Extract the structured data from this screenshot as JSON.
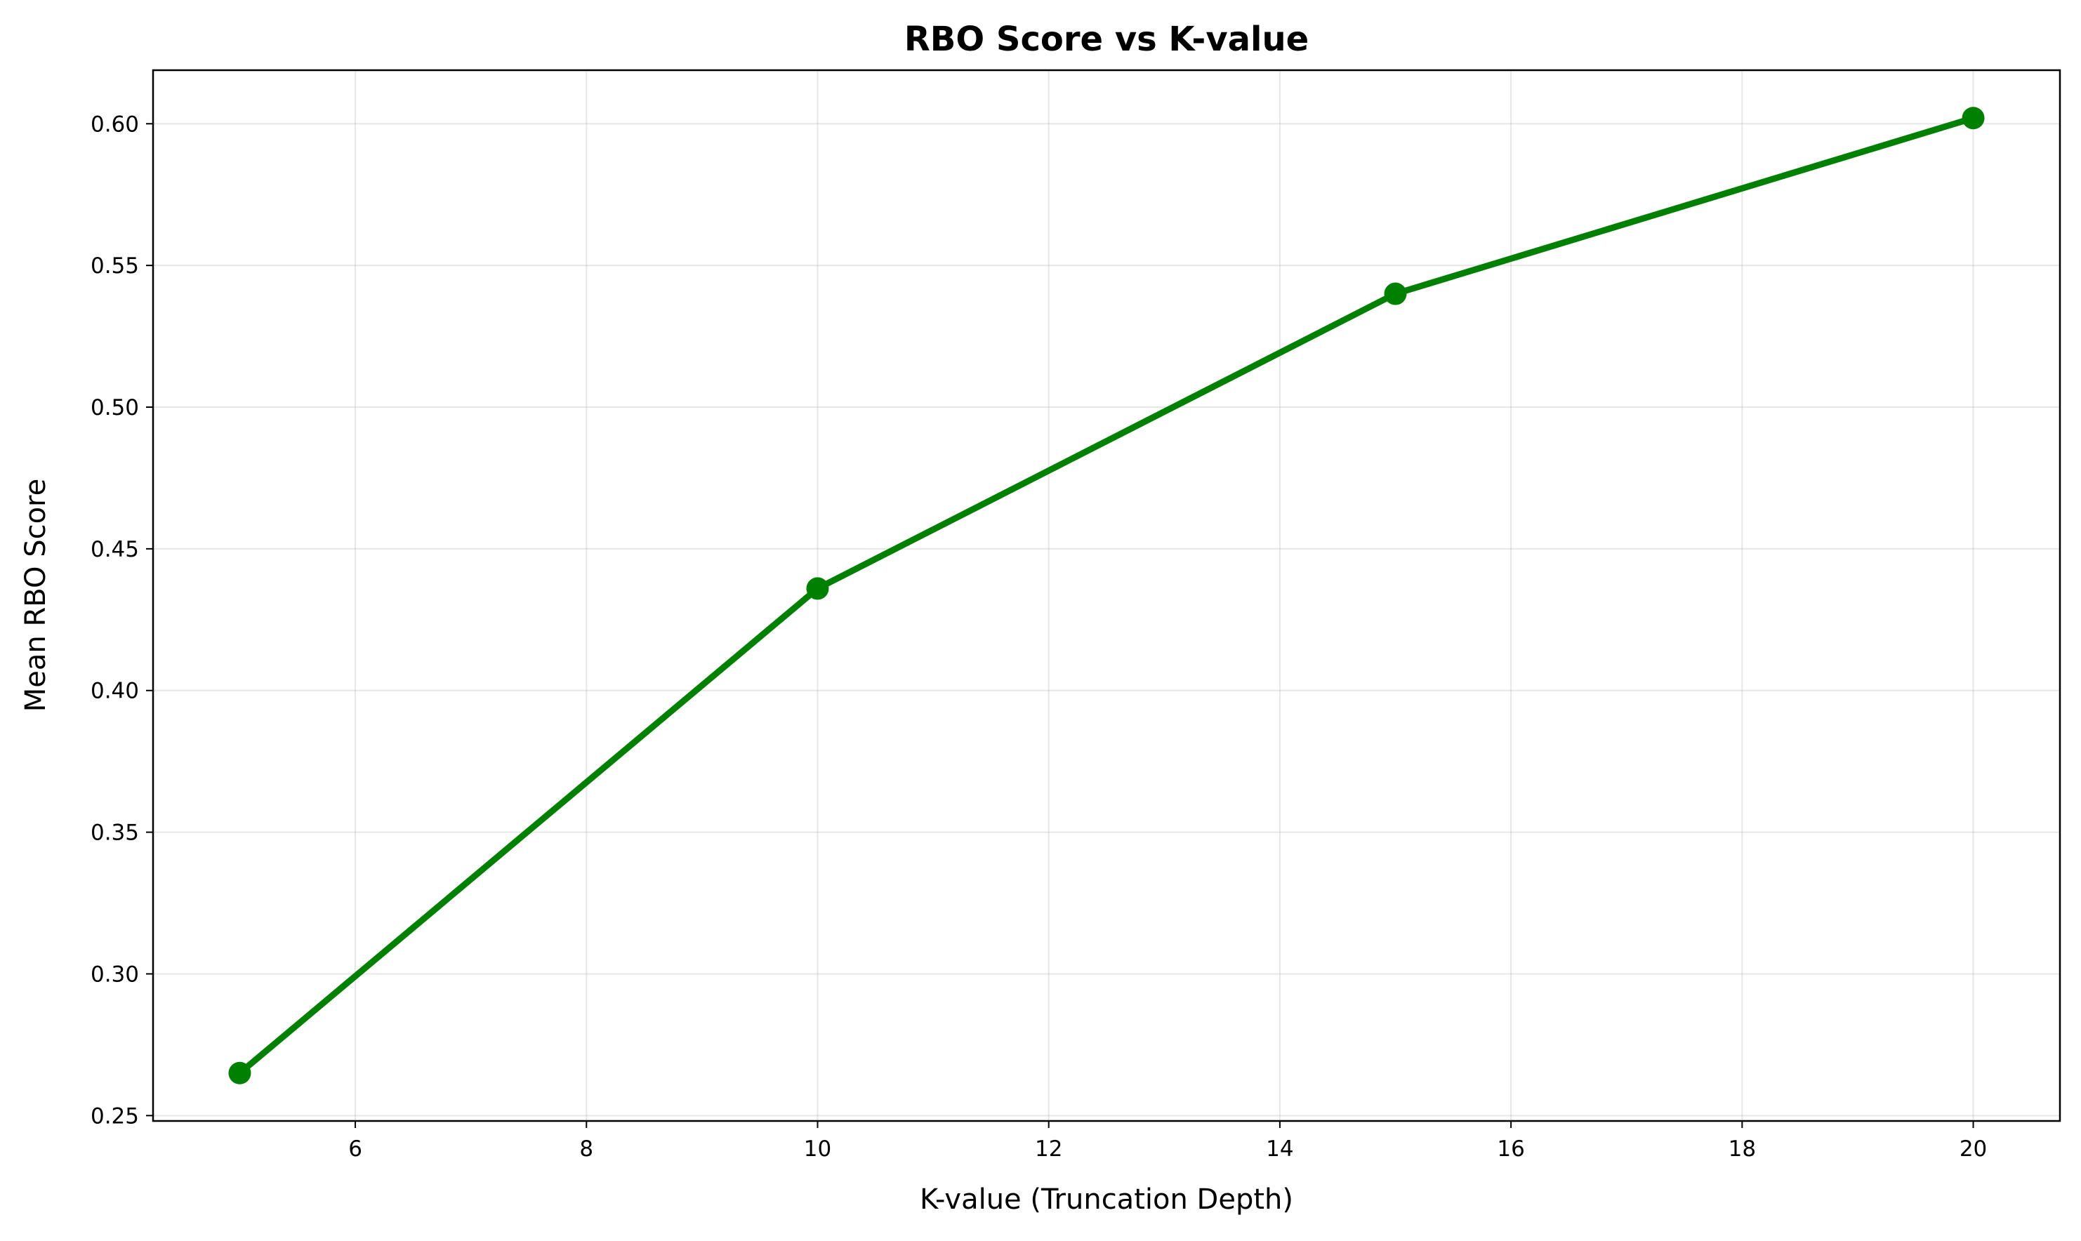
{
  "chart_data": {
    "type": "line",
    "title": "RBO Score vs K-value",
    "xlabel": "K-value (Truncation Depth)",
    "ylabel": "Mean RBO Score",
    "x": [
      5,
      10,
      15,
      20
    ],
    "series": [
      {
        "values": [
          0.265,
          0.436,
          0.54,
          0.602
        ],
        "color": "#008000"
      }
    ],
    "xlim": [
      4.25,
      20.75
    ],
    "ylim": [
      0.2481,
      0.6189
    ],
    "x_ticks": [
      6,
      8,
      10,
      12,
      14,
      16,
      18,
      20
    ],
    "x_tick_labels": [
      "6",
      "8",
      "10",
      "12",
      "14",
      "16",
      "18",
      "20"
    ],
    "y_ticks": [
      0.25,
      0.3,
      0.35,
      0.4,
      0.45,
      0.5,
      0.55,
      0.6
    ],
    "y_tick_labels": [
      "0.25",
      "0.30",
      "0.35",
      "0.40",
      "0.45",
      "0.50",
      "0.55",
      "0.60"
    ],
    "grid": true,
    "markers": true
  }
}
